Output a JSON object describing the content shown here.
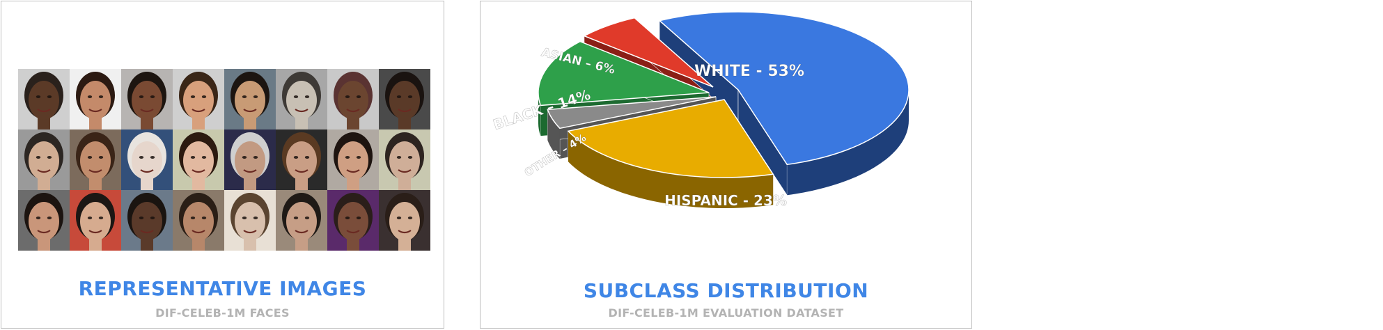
{
  "colors": {
    "title_blue": "#3f86e6",
    "subtitle_gray": "#b3b3b3",
    "white": "#3a78e0",
    "hispanic": "#e8ac00",
    "other": "#8a8a8a",
    "black": "#2ea04a",
    "asian": "#e03a2a"
  },
  "left_panel": {
    "title": "REPRESENTATIVE IMAGES",
    "subtitle": "DIF-CELEB-1M FACES",
    "faces": [
      {
        "skin": "#5b3a27",
        "bg": "#cfcfcf",
        "hair": "#2a211c"
      },
      {
        "skin": "#c48a6a",
        "bg": "#f0f0f0",
        "hair": "#2c1a12"
      },
      {
        "skin": "#7a4a33",
        "bg": "#b7b4b2",
        "hair": "#1d1510"
      },
      {
        "skin": "#d8a07c",
        "bg": "#cfcfcf",
        "hair": "#3a2617"
      },
      {
        "skin": "#c89b75",
        "bg": "#6a7a86",
        "hair": "#1c1511"
      },
      {
        "skin": "#c8c0b4",
        "bg": "#a7a7a7",
        "hair": "#3e3a36"
      },
      {
        "skin": "#6b4530",
        "bg": "#c9c9c9",
        "hair": "#5a3332"
      },
      {
        "skin": "#5a3a28",
        "bg": "#4a4a4a",
        "hair": "#1a1310"
      },
      {
        "skin": "#d1ad93",
        "bg": "#9a9a9a",
        "hair": "#2c2622"
      },
      {
        "skin": "#c28d6d",
        "bg": "#7c6b5c",
        "hair": "#3a2417"
      },
      {
        "skin": "#e6d6cc",
        "bg": "#33507a",
        "hair": "#e8e4df"
      },
      {
        "skin": "#e2b9a0",
        "bg": "#c8c9ad",
        "hair": "#2c1a10"
      },
      {
        "skin": "#c29a82",
        "bg": "#2b2b4a",
        "hair": "#cfcfcf"
      },
      {
        "skin": "#c99e85",
        "bg": "#2a2a2a",
        "hair": "#5a3a22"
      },
      {
        "skin": "#cf9f83",
        "bg": "#b0a9a2",
        "hair": "#1e1410"
      },
      {
        "skin": "#cfae98",
        "bg": "#c8c8b0",
        "hair": "#2d2420"
      },
      {
        "skin": "#c9967a",
        "bg": "#6c6c6c",
        "hair": "#1c1410"
      },
      {
        "skin": "#d6ab8f",
        "bg": "#c74a3a",
        "hair": "#1c1714"
      },
      {
        "skin": "#5a3a2a",
        "bg": "#6b7a8a",
        "hair": "#1a1410"
      },
      {
        "skin": "#b7876a",
        "bg": "#8a7a6a",
        "hair": "#2a1e16"
      },
      {
        "skin": "#d8c0ad",
        "bg": "#e8e0d5",
        "hair": "#5a4430"
      },
      {
        "skin": "#c69e86",
        "bg": "#9a8a7a",
        "hair": "#1f1a16"
      },
      {
        "skin": "#7a4d3a",
        "bg": "#5a2a6a",
        "hair": "#2a1e1a"
      },
      {
        "skin": "#d4b096",
        "bg": "#3a3030",
        "hair": "#2a1e18"
      }
    ]
  },
  "right_panel": {
    "title": "SUBCLASS DISTRIBUTION",
    "subtitle": "DIF-CELEB-1M EVALUATION DATASET"
  },
  "chart_data": {
    "type": "pie",
    "title": "SUBCLASS DISTRIBUTION",
    "subtitle": "DIF-CELEB-1M EVALUATION DATASET",
    "style": "3d-exploded",
    "slices": [
      {
        "label": "WHITE - 53%",
        "category": "WHITE",
        "value": 53,
        "color": "#3a78e0",
        "side_color": "#1e3f7a"
      },
      {
        "label": "HISPANIC - 23%",
        "category": "HISPANIC",
        "value": 23,
        "color": "#e8ac00",
        "side_color": "#8a6500"
      },
      {
        "label": "OTHER – 4%",
        "category": "OTHER",
        "value": 4,
        "color": "#8a8a8a",
        "side_color": "#555555"
      },
      {
        "label": "BLACK – 14%",
        "category": "BLACK",
        "value": 14,
        "color": "#2ea04a",
        "side_color": "#1c6a30"
      },
      {
        "label": "ASIAN – 6%",
        "category": "ASIAN",
        "value": 6,
        "color": "#e03a2a",
        "side_color": "#8a1f16"
      }
    ]
  }
}
